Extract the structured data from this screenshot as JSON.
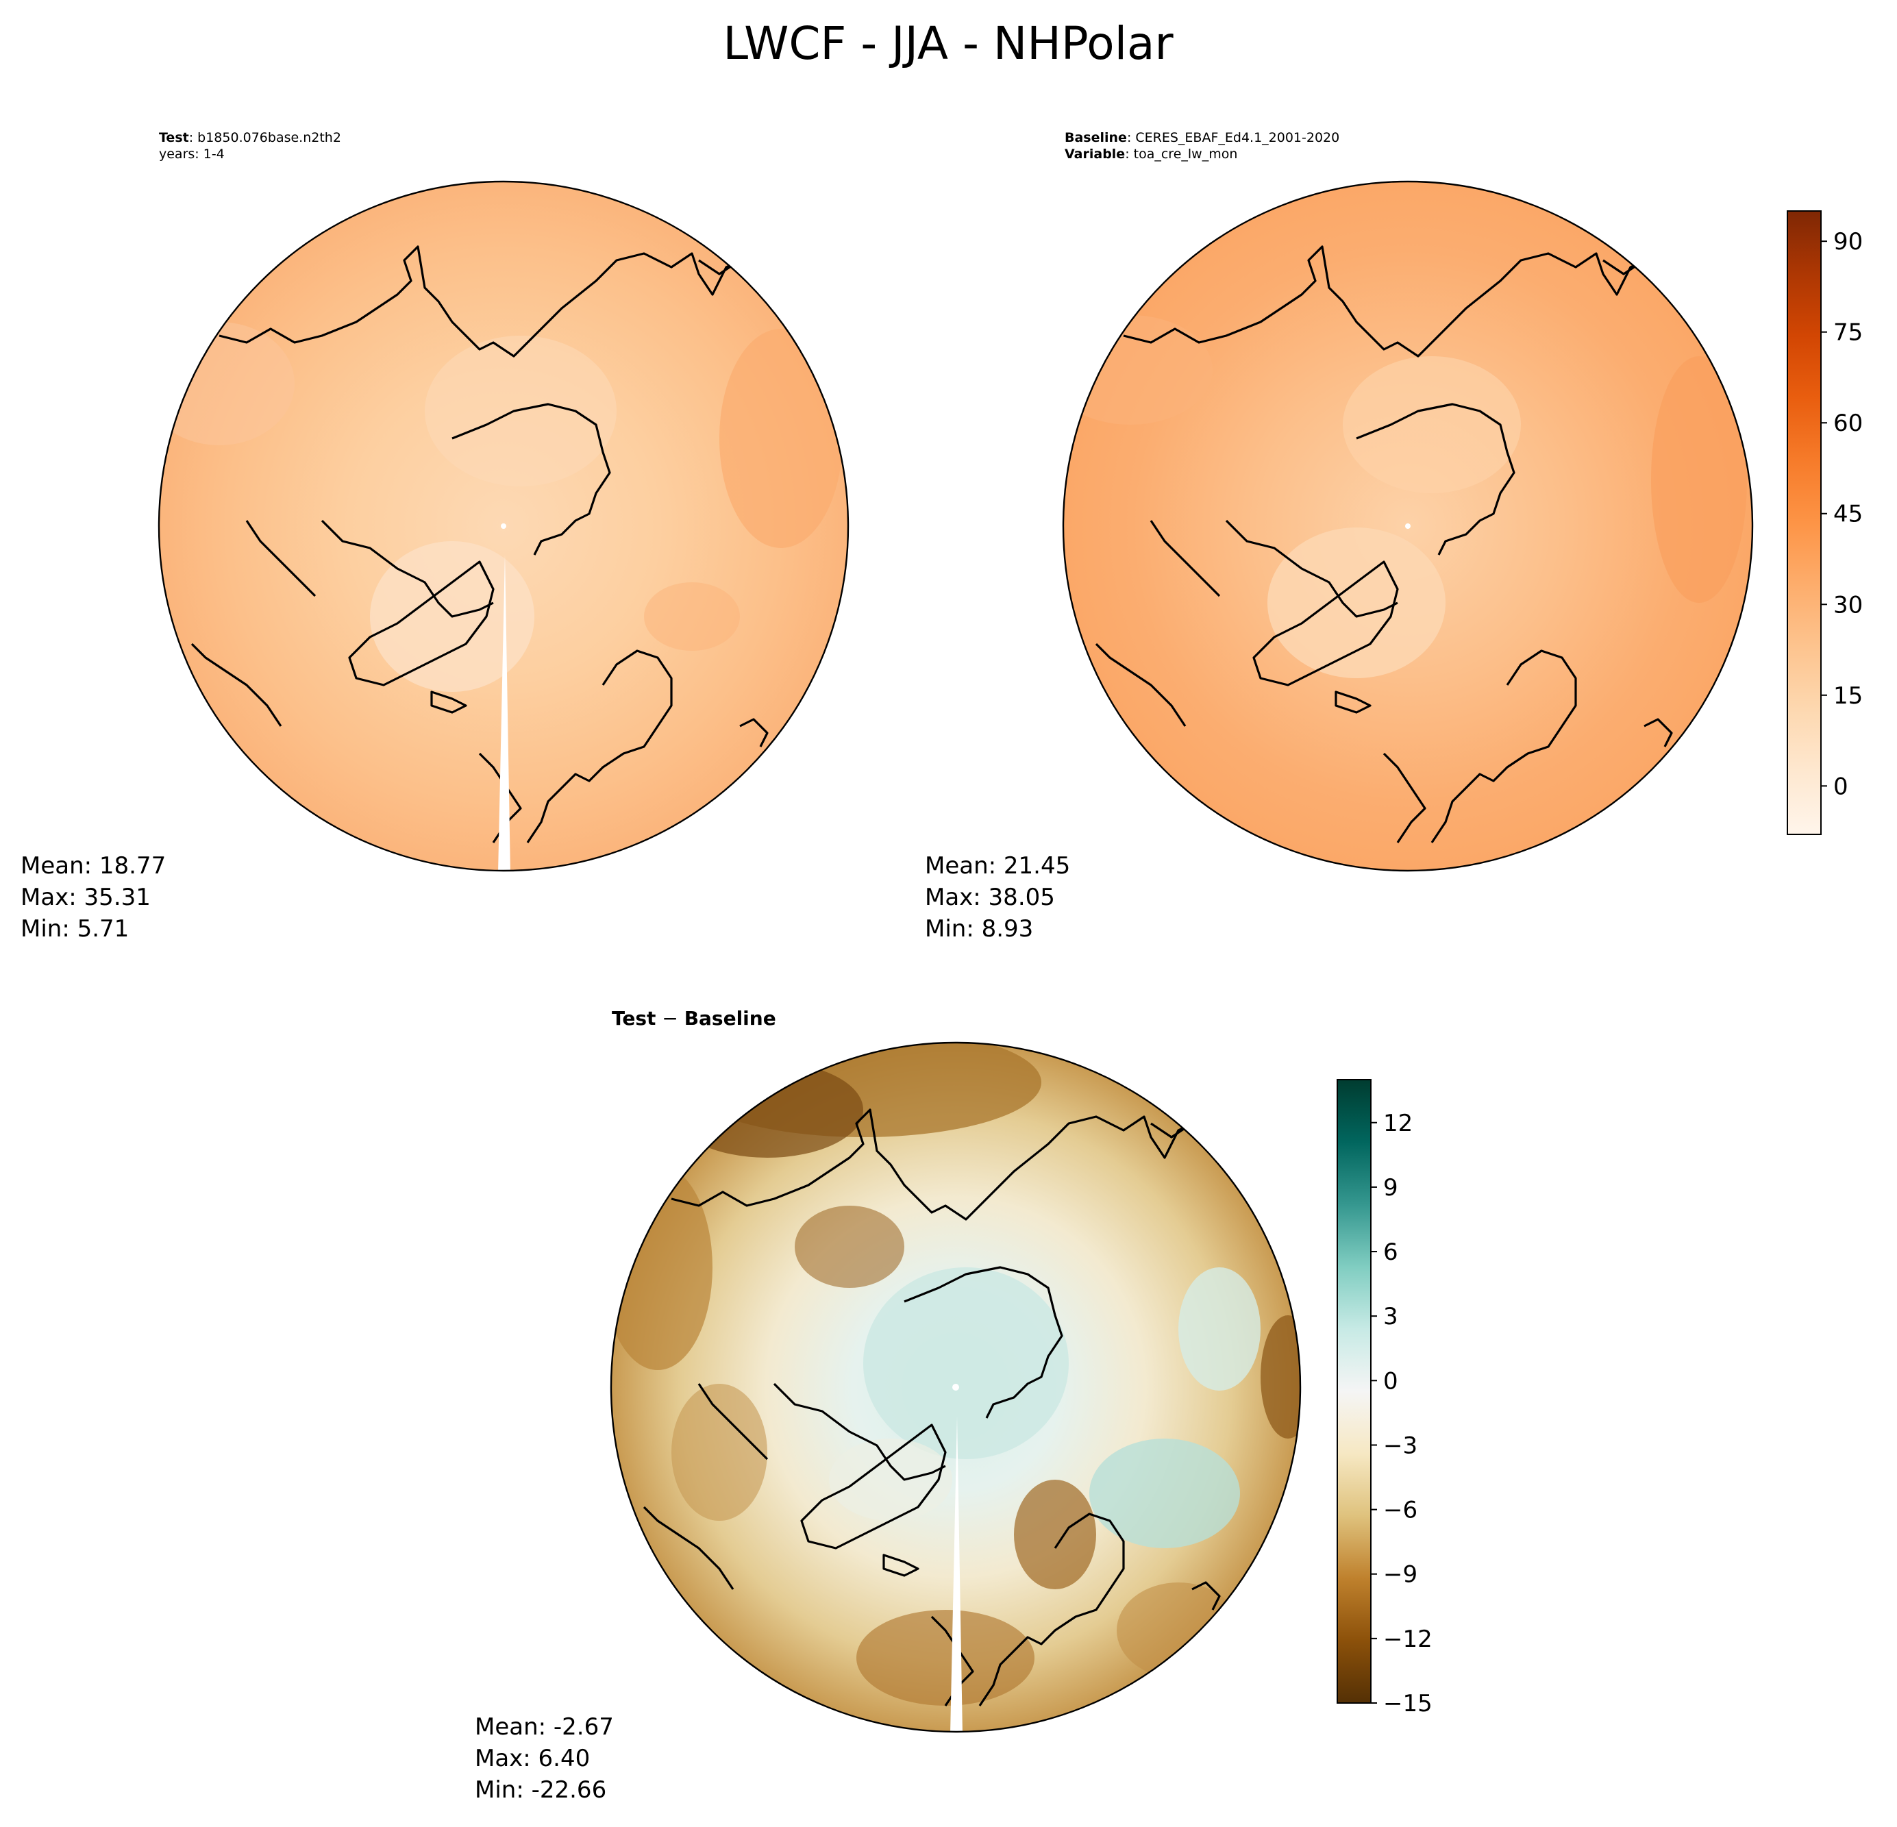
{
  "figure": {
    "title": "LWCF - JJA - NHPolar"
  },
  "panels": {
    "test": {
      "label_bold": "Test",
      "label_text": ": b1850.076base.n2th2",
      "label_line2": "years: 1-4",
      "stats": {
        "mean": "Mean: 18.77",
        "max": "Max: 35.31",
        "min": "Min:  5.71"
      }
    },
    "baseline": {
      "label_bold": "Baseline",
      "label_text": ": CERES_EBAF_Ed4.1_2001-2020",
      "label2_bold": "Variable",
      "label2_text": ": toa_cre_lw_mon",
      "stats": {
        "mean": "Mean: 21.45",
        "max": "Max: 38.05",
        "min": "Min:  8.93"
      }
    },
    "diff": {
      "label_a": "Test",
      "label_sep": " − ",
      "label_b": "Baseline",
      "stats": {
        "mean": "Mean: -2.67",
        "max": "Max:  6.40",
        "min": "Min: -22.66"
      }
    }
  },
  "colorbars": {
    "top": {
      "ticks": [
        "90",
        "75",
        "60",
        "45",
        "30",
        "15",
        "0"
      ],
      "colors": [
        "#fff5eb",
        "#fee8d0",
        "#fdd8b0",
        "#fdc48f",
        "#fdad6c",
        "#fd9446",
        "#f67b2a",
        "#e95e0f",
        "#d24603",
        "#ad3703",
        "#7f2704"
      ]
    },
    "bottom": {
      "ticks": [
        "12",
        "9",
        "6",
        "3",
        "0",
        "−3",
        "−6",
        "−9",
        "−12",
        "−15"
      ],
      "colors": [
        "#543005",
        "#8c510a",
        "#bf812d",
        "#dfc27d",
        "#f6e8c3",
        "#f5f5f5",
        "#c7eae5",
        "#80cdc1",
        "#35978f",
        "#01665e",
        "#003c30"
      ]
    }
  },
  "chart_data": [
    {
      "type": "heatmap",
      "panel": "test",
      "projection": "north polar stereographic",
      "colorbar_range": [
        -8,
        95
      ],
      "stats": {
        "mean": 18.77,
        "max": 35.31,
        "min": 5.71
      }
    },
    {
      "type": "heatmap",
      "panel": "baseline",
      "projection": "north polar stereographic",
      "colorbar_range": [
        -8,
        95
      ],
      "colorbar_ticks": [
        0,
        15,
        30,
        45,
        60,
        75,
        90
      ],
      "stats": {
        "mean": 21.45,
        "max": 38.05,
        "min": 8.93
      }
    },
    {
      "type": "heatmap",
      "panel": "diff",
      "projection": "north polar stereographic",
      "colorbar_range": [
        -15,
        14
      ],
      "colorbar_ticks": [
        -15,
        -12,
        -9,
        -6,
        -3,
        0,
        3,
        6,
        9,
        12
      ],
      "stats": {
        "mean": -2.67,
        "max": 6.4,
        "min": -22.66
      }
    }
  ]
}
